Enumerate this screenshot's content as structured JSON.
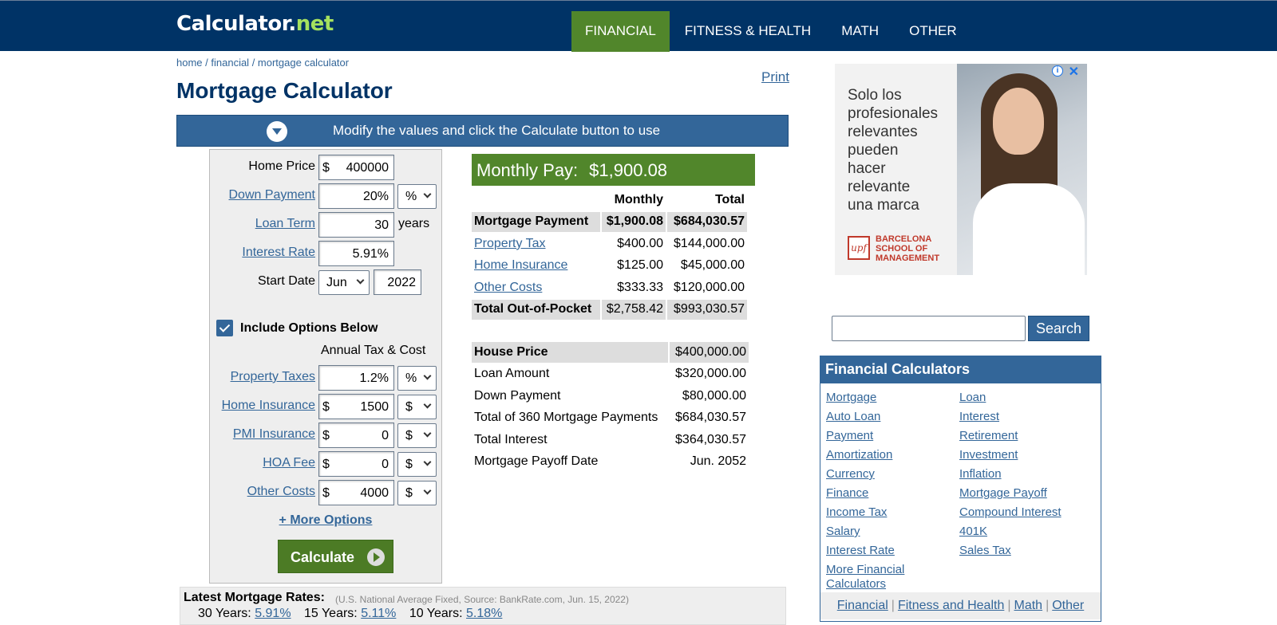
{
  "header": {
    "logo_main": "Calculator",
    "logo_net": "net",
    "nav": [
      "FINANCIAL",
      "FITNESS & HEALTH",
      "MATH",
      "OTHER"
    ]
  },
  "breadcrumb": [
    "home",
    "financial",
    "mortgage calculator"
  ],
  "print_label": "Print",
  "page_title": "Mortgage Calculator",
  "banner_text": "Modify the values and click the Calculate button to use",
  "form": {
    "home_price": {
      "label": "Home Price",
      "prefix": "$",
      "value": "400000"
    },
    "down_payment": {
      "label": "Down Payment",
      "value": "20%",
      "unit": "%"
    },
    "loan_term": {
      "label": "Loan Term",
      "value": "30",
      "unit": "years"
    },
    "interest_rate": {
      "label": "Interest Rate",
      "value": "5.91%"
    },
    "start_date": {
      "label": "Start Date",
      "month": "Jun",
      "year": "2022"
    },
    "include_options": {
      "label": "Include Options Below",
      "checked": true
    },
    "annual_tax_cost": "Annual Tax & Cost",
    "property_taxes": {
      "label": "Property Taxes",
      "value": "1.2%",
      "unit": "%"
    },
    "home_insurance": {
      "label": "Home Insurance",
      "prefix": "$",
      "value": "1500",
      "unit": "$"
    },
    "pmi_insurance": {
      "label": "PMI Insurance",
      "prefix": "$",
      "value": "0",
      "unit": "$"
    },
    "hoa_fee": {
      "label": "HOA Fee",
      "prefix": "$",
      "value": "0",
      "unit": "$"
    },
    "other_costs": {
      "label": "Other Costs",
      "prefix": "$",
      "value": "4000",
      "unit": "$"
    },
    "more_options": "+ More Options",
    "calculate": "Calculate"
  },
  "results": {
    "monthly_pay_label": "Monthly Pay:",
    "monthly_pay_value": "$1,900.08",
    "col_monthly": "Monthly",
    "col_total": "Total",
    "rows": [
      {
        "label": "Mortgage Payment",
        "monthly": "$1,900.08",
        "total": "$684,030.57"
      },
      {
        "label": "Property Tax",
        "monthly": "$400.00",
        "total": "$144,000.00"
      },
      {
        "label": "Home Insurance",
        "monthly": "$125.00",
        "total": "$45,000.00"
      },
      {
        "label": "Other Costs",
        "monthly": "$333.33",
        "total": "$120,000.00"
      },
      {
        "label": "Total Out-of-Pocket",
        "monthly": "$2,758.42",
        "total": "$993,030.57"
      }
    ],
    "summary": [
      {
        "label": "House Price",
        "value": "$400,000.00"
      },
      {
        "label": "Loan Amount",
        "value": "$320,000.00"
      },
      {
        "label": "Down Payment",
        "value": "$80,000.00"
      },
      {
        "label": "Total of 360 Mortgage Payments",
        "value": "$684,030.57"
      },
      {
        "label": "Total Interest",
        "value": "$364,030.57"
      },
      {
        "label": "Mortgage Payoff Date",
        "value": "Jun. 2052"
      }
    ]
  },
  "rates": {
    "header": "Latest Mortgage Rates:",
    "source": "(U.S. National Average Fixed, Source: BankRate.com, Jun. 15, 2022)",
    "items": [
      {
        "label": "30 Years:",
        "value": "5.91%"
      },
      {
        "label": "15 Years:",
        "value": "5.11%"
      },
      {
        "label": "10 Years:",
        "value": "5.18%"
      }
    ]
  },
  "ad": {
    "text": [
      "Solo los",
      "profesionales",
      "relevantes",
      "pueden",
      "hacer",
      "relevante",
      "una marca"
    ],
    "brand_logo": "upf",
    "brand_lines": [
      "BARCELONA",
      "SCHOOL OF",
      "MANAGEMENT"
    ]
  },
  "search": {
    "button": "Search"
  },
  "fin_calcs": {
    "title": "Financial Calculators",
    "col1": [
      "Mortgage",
      "Auto Loan",
      "Payment",
      "Amortization",
      "Currency",
      "Finance",
      "Income Tax",
      "Salary",
      "Interest Rate",
      "More Financial Calculators"
    ],
    "col2": [
      "Loan",
      "Interest",
      "Retirement",
      "Investment",
      "Inflation",
      "Mortgage Payoff",
      "Compound Interest",
      "401K",
      "Sales Tax"
    ],
    "footer": [
      "Financial",
      "Fitness and Health",
      "Math",
      "Other"
    ]
  }
}
